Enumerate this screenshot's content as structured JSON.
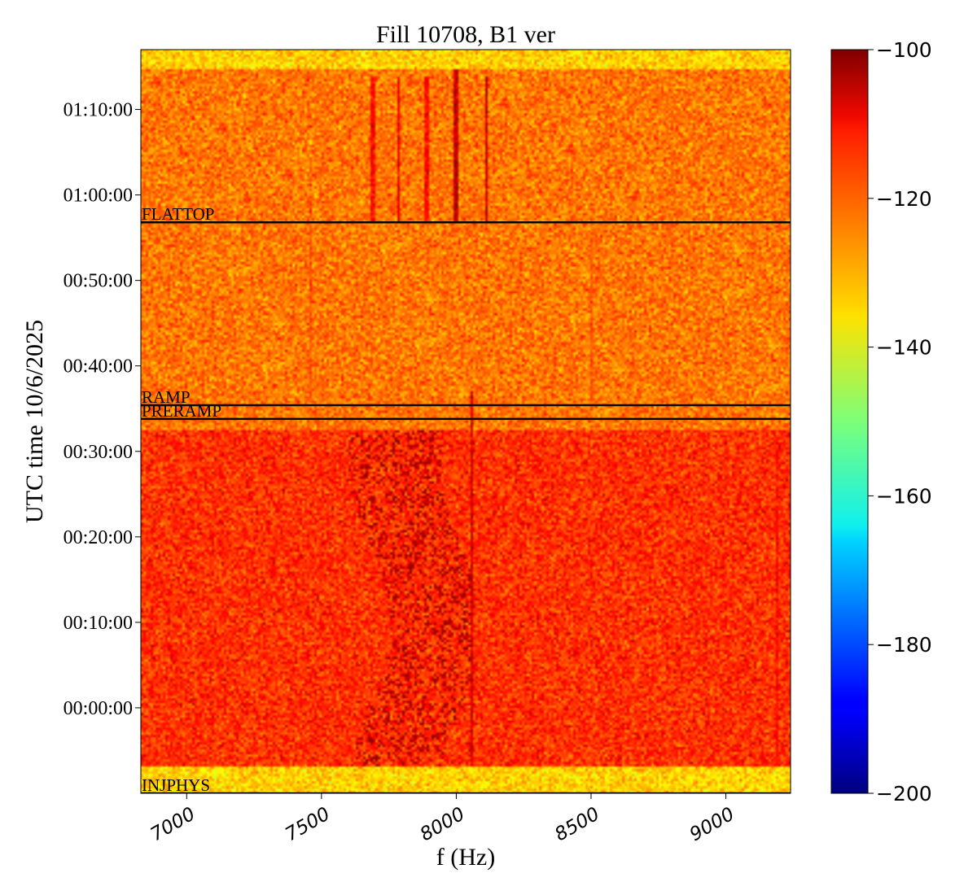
{
  "chart_data": {
    "type": "heatmap",
    "title": "Fill 10708, B1 ver",
    "xlabel": "f (Hz)",
    "ylabel": "UTC time 10/6/2025",
    "xlim": [
      6830,
      9240
    ],
    "x_ticks": [
      {
        "value": 7000,
        "label": "7000"
      },
      {
        "value": 7500,
        "label": "7500"
      },
      {
        "value": 8000,
        "label": "8000"
      },
      {
        "value": 8500,
        "label": "8500"
      },
      {
        "value": 9000,
        "label": "9000"
      }
    ],
    "ylim_minutes": [
      -10,
      77
    ],
    "y_ticks": [
      {
        "value": 0,
        "label": "00:00:00"
      },
      {
        "value": 10,
        "label": "00:10:00"
      },
      {
        "value": 20,
        "label": "00:20:00"
      },
      {
        "value": 30,
        "label": "00:30:00"
      },
      {
        "value": 40,
        "label": "00:40:00"
      },
      {
        "value": 50,
        "label": "00:50:00"
      },
      {
        "value": 60,
        "label": "01:00:00"
      },
      {
        "value": 70,
        "label": "01:10:00"
      }
    ],
    "colorbar": {
      "colormap": "jet",
      "range": [
        -200,
        -100
      ],
      "ticks": [
        {
          "value": -100,
          "label": "−100"
        },
        {
          "value": -120,
          "label": "−120"
        },
        {
          "value": -140,
          "label": "−140"
        },
        {
          "value": -160,
          "label": "−160"
        },
        {
          "value": -180,
          "label": "−180"
        },
        {
          "value": -200,
          "label": "−200"
        }
      ]
    },
    "markers": [
      {
        "label": "INJPHYS",
        "time_minutes": -10
      },
      {
        "label": "PRERAMP",
        "time_minutes": 33.8
      },
      {
        "label": "RAMP",
        "time_minutes": 35.4
      },
      {
        "label": "FLATTOP",
        "time_minutes": 56.8
      }
    ],
    "regions": [
      {
        "from_minutes": -10,
        "to_minutes": -7,
        "level_db": -133
      },
      {
        "from_minutes": -7,
        "to_minutes": 32.5,
        "level_db": -117
      },
      {
        "from_minutes": 32.5,
        "to_minutes": 74.7,
        "level_db": -124
      },
      {
        "from_minutes": 74.7,
        "to_minutes": 77,
        "level_db": -133
      }
    ],
    "lines": [
      {
        "freq": 7460,
        "from_minutes": 35.5,
        "to_minutes": 60,
        "level_db": -121
      },
      {
        "freq": 7690,
        "from_minutes": 56.8,
        "to_minutes": 74,
        "level_db": -113
      },
      {
        "freq": 7785,
        "from_minutes": 56.8,
        "to_minutes": 74,
        "level_db": -110
      },
      {
        "freq": 7890,
        "from_minutes": 56.8,
        "to_minutes": 74,
        "level_db": -113
      },
      {
        "freq": 8000,
        "from_minutes": 56.8,
        "to_minutes": 74.7,
        "level_db": -107
      },
      {
        "freq": 8060,
        "from_minutes": -7,
        "to_minutes": 37,
        "level_db": -108
      },
      {
        "freq": 8110,
        "from_minutes": 56.8,
        "to_minutes": 74,
        "level_db": -107
      },
      {
        "freq": 8500,
        "from_minutes": 33.8,
        "to_minutes": 55,
        "level_db": -121
      },
      {
        "freq": 9190,
        "from_minutes": -7,
        "to_minutes": 31,
        "level_db": -113
      }
    ],
    "hot_band": {
      "freq_from": 7600,
      "freq_to": 8050,
      "from_minutes": -7,
      "to_minutes": 32.5,
      "level_db": -104
    }
  }
}
